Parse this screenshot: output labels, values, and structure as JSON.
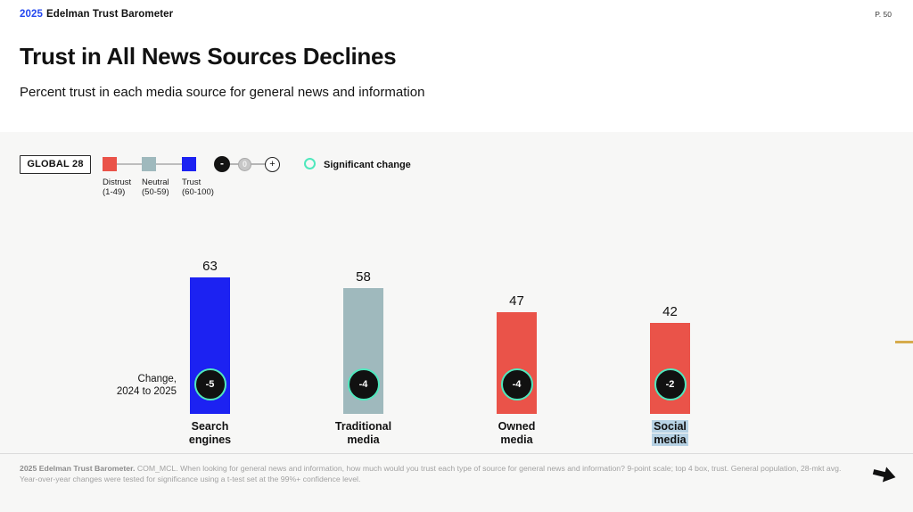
{
  "header": {
    "year": "2025",
    "brand": "Edelman Trust Barometer",
    "page_number": "P. 50"
  },
  "title": "Trust in All News Sources Declines",
  "subtitle": "Percent trust in each media source for general news and information",
  "legend": {
    "scope": "GLOBAL 28",
    "scale": [
      {
        "label": "Distrust\n(1-49)",
        "color": "#ea5349"
      },
      {
        "label": "Neutral\n(50-59)",
        "color": "#9fb9bd"
      },
      {
        "label": "Trust\n(60-100)",
        "color": "#1c22f2"
      }
    ],
    "change_scale": {
      "minus": "-",
      "zero": "0",
      "plus": "+"
    },
    "significant": {
      "label": "Significant change",
      "color": "#4fe8bd"
    }
  },
  "chart_data": {
    "type": "bar",
    "title": "Percent trust in each media source for general news and information",
    "categories": [
      "Search engines",
      "Traditional media",
      "Owned media",
      "Social media"
    ],
    "values": [
      63,
      58,
      47,
      42
    ],
    "changes": [
      -5,
      -4,
      -4,
      -2
    ],
    "significant": [
      true,
      true,
      true,
      true
    ],
    "bar_colors": [
      "#1c22f2",
      "#9fb9bd",
      "#ea5349",
      "#ea5349"
    ],
    "label_lines": [
      "Search\nengines",
      "Traditional\nmedia",
      "Owned\nmedia",
      "Social\nmedia"
    ],
    "highlighted": [
      false,
      false,
      false,
      true
    ],
    "change_row_label_line1": "Change,",
    "change_row_label_line2": "2024 to 2025",
    "ylim": [
      0,
      100
    ],
    "badge_bg": "#111111",
    "badge_ring": "#4fe8bd",
    "highlight_color": "#b7d2e4"
  },
  "footer": {
    "source_bold": "2025 Edelman Trust Barometer.",
    "source_text": " COM_MCL. When looking for general news and information, how much would you trust each type of source for general news and information? 9-point scale; top 4 box, trust. General population, 28-mkt avg. Year-over-year changes were tested for significance using a t-test set at the 99%+ confidence level."
  }
}
